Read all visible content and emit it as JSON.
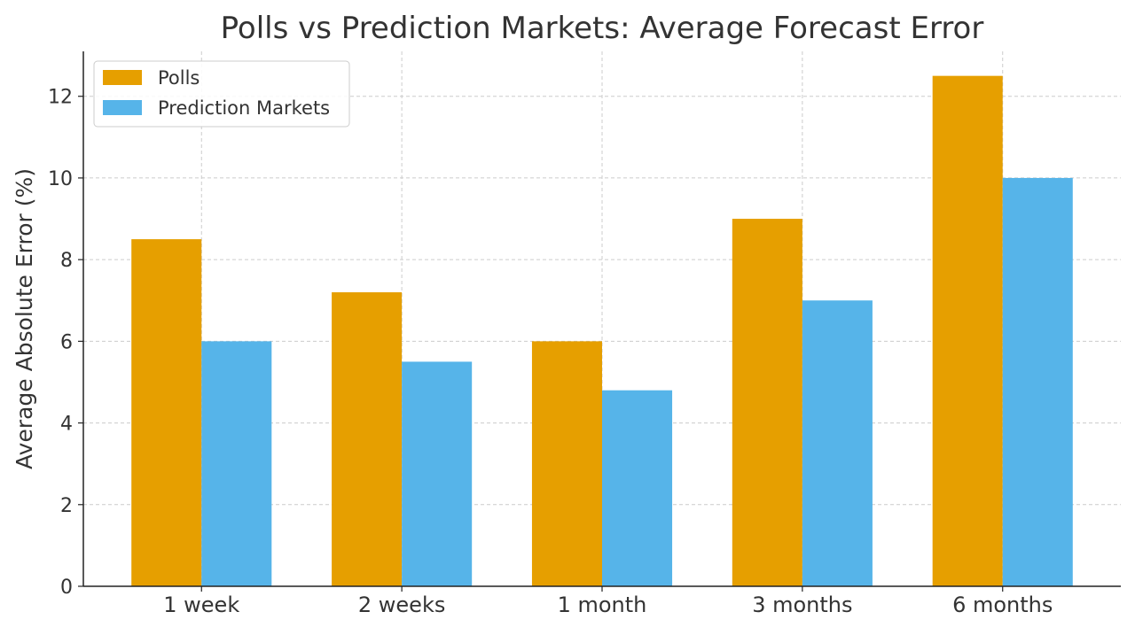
{
  "chart_data": {
    "type": "bar",
    "title": "Polls vs Prediction Markets: Average Forecast Error",
    "xlabel": "",
    "ylabel": "Average Absolute Error (%)",
    "categories": [
      "1 week",
      "2 weeks",
      "1 month",
      "3 months",
      "6 months"
    ],
    "series": [
      {
        "name": "Polls",
        "color": "#E69F00",
        "values": [
          8.5,
          7.2,
          6.0,
          9.0,
          12.5
        ]
      },
      {
        "name": "Prediction Markets",
        "color": "#56B4E9",
        "values": [
          6.0,
          5.5,
          4.8,
          7.0,
          10.0
        ]
      }
    ],
    "ylim": [
      0,
      13.1
    ],
    "yticks": [
      0,
      2,
      4,
      6,
      8,
      10,
      12
    ],
    "grid": true,
    "legend": "top-left"
  }
}
